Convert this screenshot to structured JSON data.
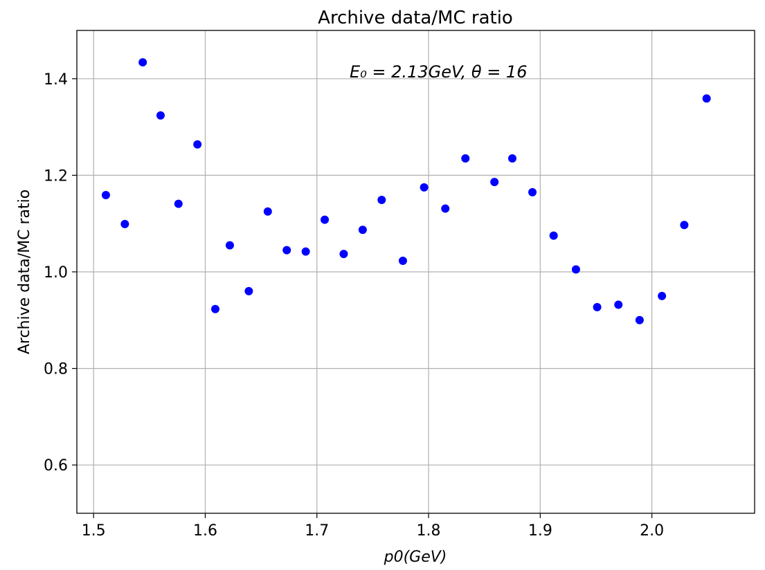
{
  "chart_data": {
    "type": "scatter",
    "title": "Archive data/MC ratio",
    "xlabel": "p0(GeV)",
    "ylabel": "Archive data/MC ratio",
    "annotation": "E₀ = 2.13GeV,  θ = 16",
    "xlim": [
      1.485,
      2.092
    ],
    "ylim": [
      0.5,
      1.5
    ],
    "x_ticks": [
      "1.5",
      "1.6",
      "1.7",
      "1.8",
      "1.9",
      "2.0"
    ],
    "y_ticks": [
      "0.6",
      "0.8",
      "1.0",
      "1.2",
      "1.4"
    ],
    "grid": true,
    "marker_color": "#0000ff",
    "series": [
      {
        "x": [
          1.511,
          1.528,
          1.544,
          1.56,
          1.576,
          1.593,
          1.609,
          1.622,
          1.639,
          1.656,
          1.673,
          1.69,
          1.707,
          1.724,
          1.741,
          1.758,
          1.777,
          1.796,
          1.815,
          1.833,
          1.859,
          1.875,
          1.893,
          1.912,
          1.932,
          1.951,
          1.97,
          1.989,
          2.009,
          2.029,
          2.049
        ],
        "y": [
          1.159,
          1.099,
          1.434,
          1.324,
          1.141,
          1.264,
          0.923,
          1.055,
          0.96,
          1.125,
          1.045,
          1.042,
          1.108,
          1.037,
          1.087,
          1.149,
          1.023,
          1.175,
          1.131,
          1.235,
          1.186,
          1.235,
          1.165,
          1.075,
          1.005,
          0.927,
          0.932,
          0.9,
          0.95,
          1.097,
          1.359
        ]
      }
    ]
  }
}
